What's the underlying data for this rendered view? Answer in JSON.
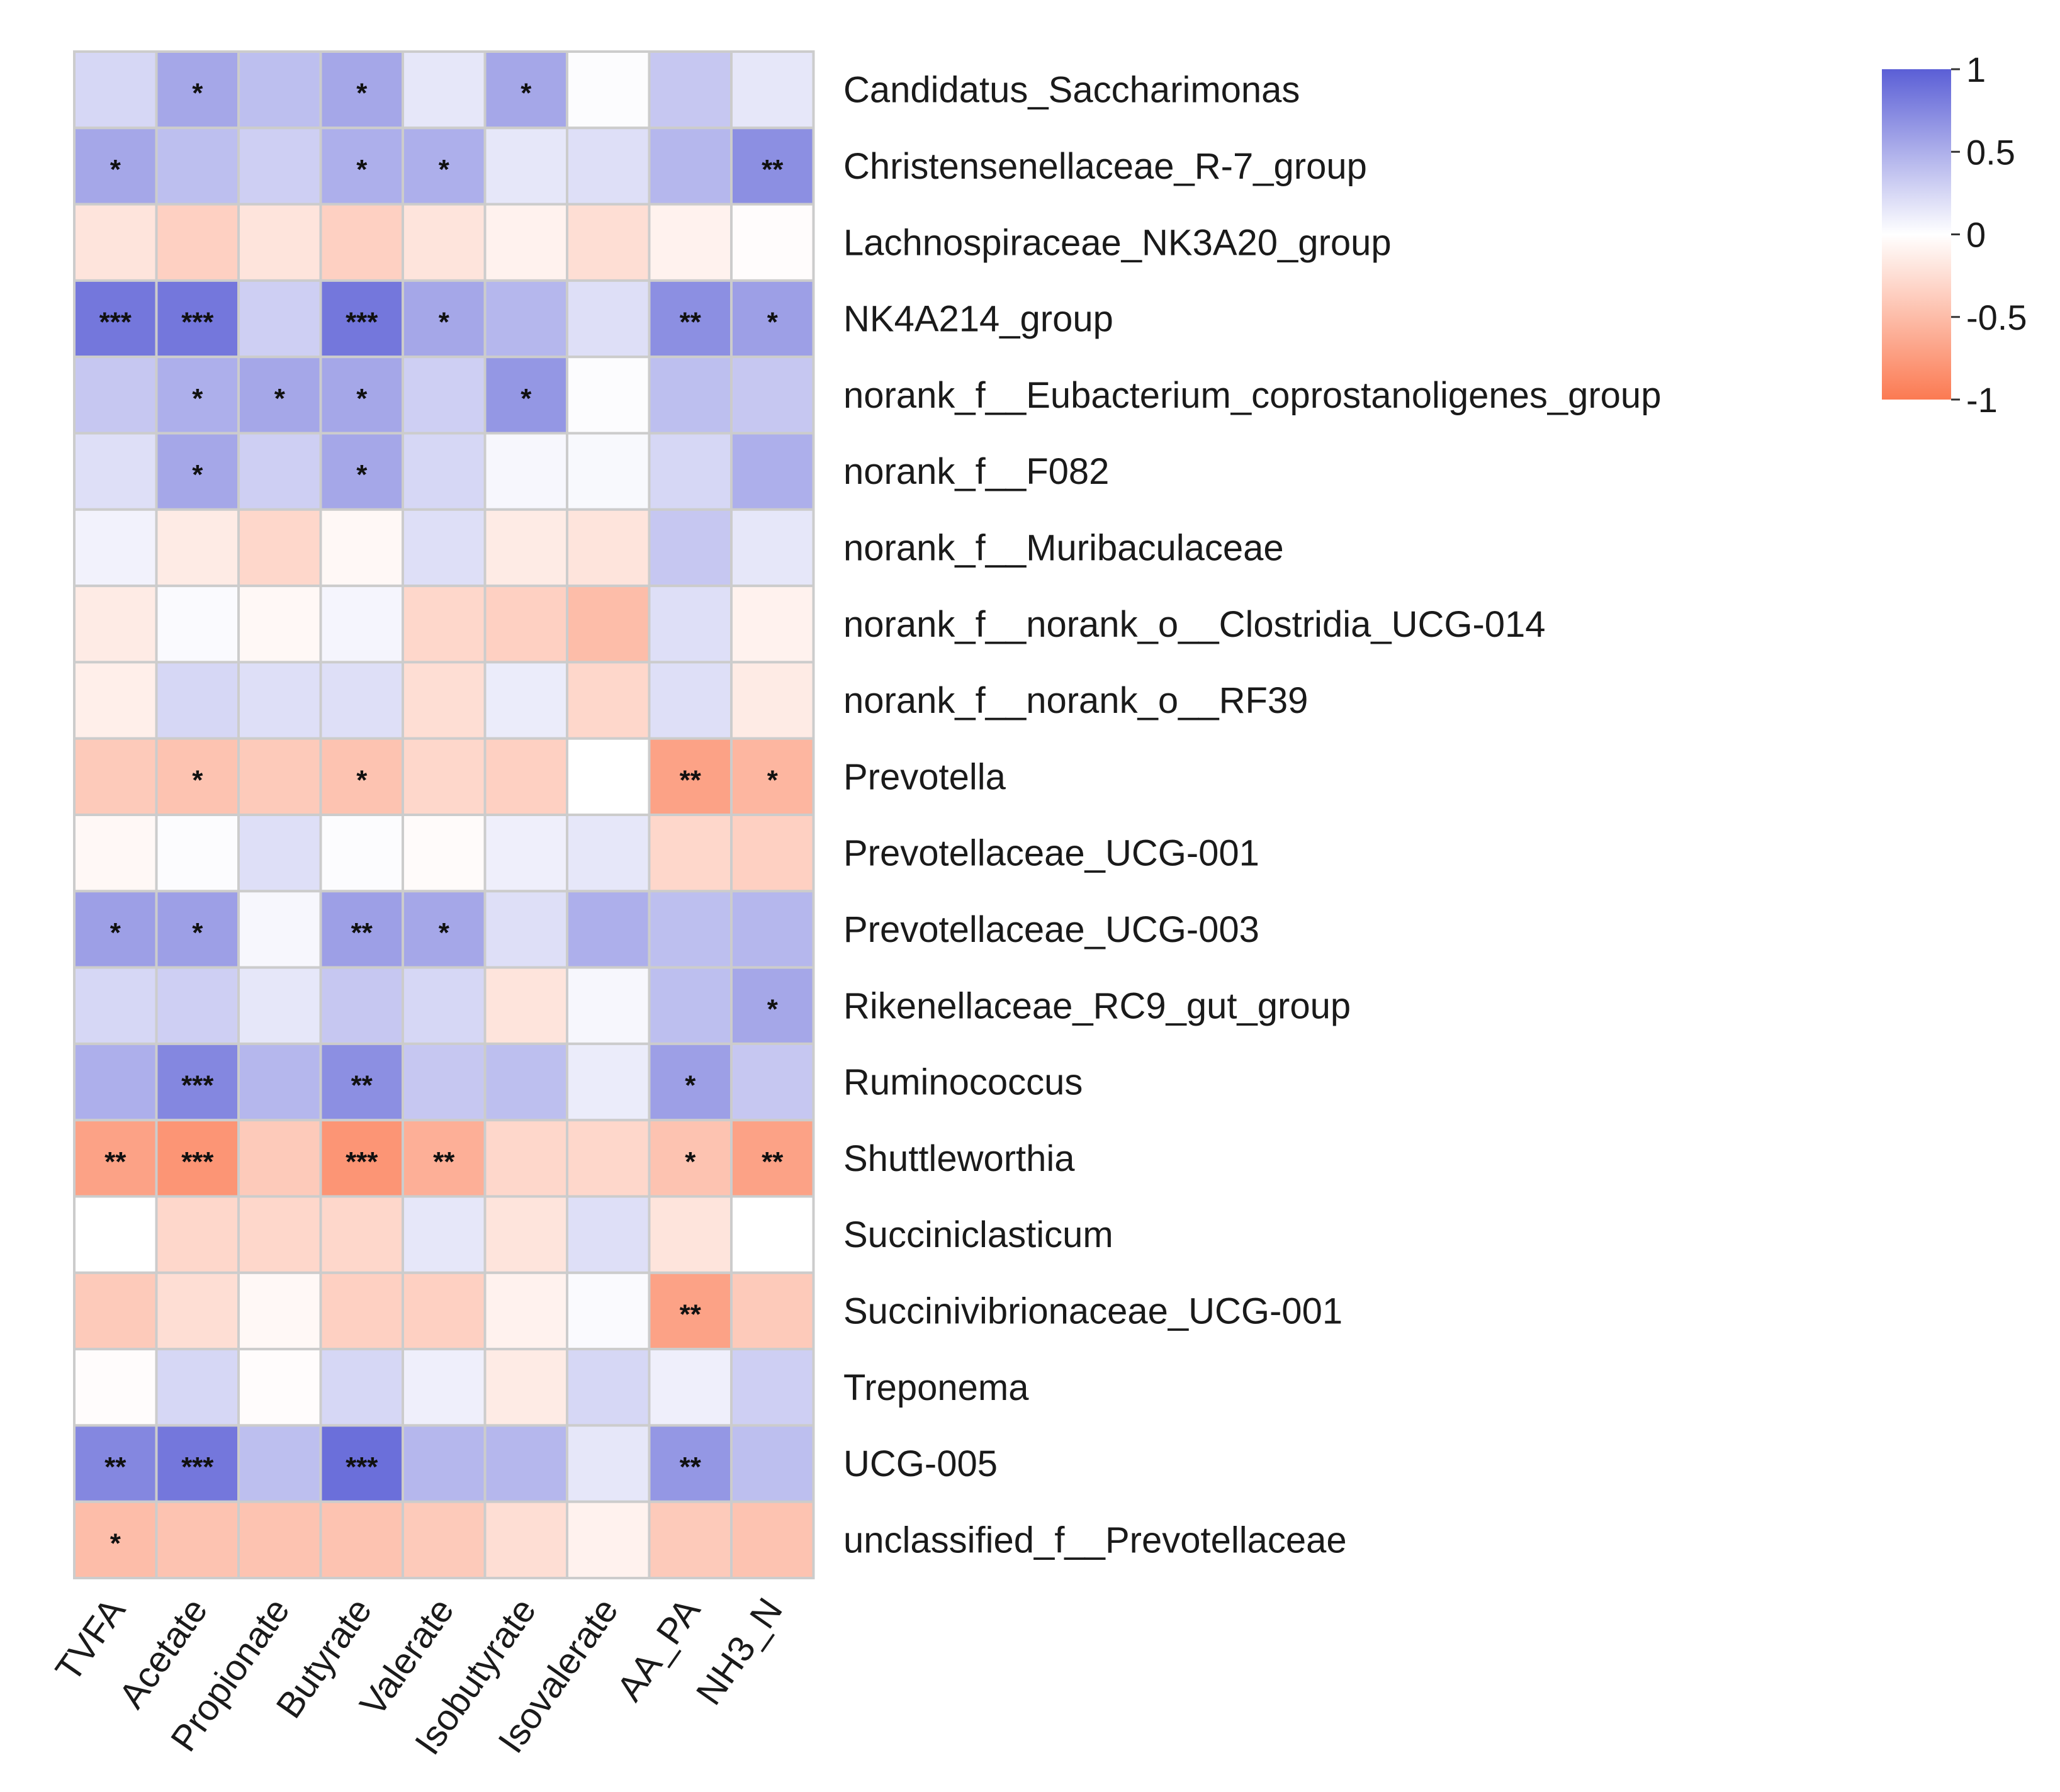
{
  "chart_data": {
    "type": "heatmap",
    "title": "",
    "rows": [
      "Candidatus_Saccharimonas",
      "Christensenellaceae_R-7_group",
      "Lachnospiraceae_NK3A20_group",
      "NK4A214_group",
      "norank_f__Eubacterium_coprostanoligenes_group",
      "norank_f__F082",
      "norank_f__Muribaculaceae",
      "norank_f__norank_o__Clostridia_UCG-014",
      "norank_f__norank_o__RF39",
      "Prevotella",
      "Prevotellaceae_UCG-001",
      "Prevotellaceae_UCG-003",
      "Rikenellaceae_RC9_gut_group",
      "Ruminococcus",
      "Shuttleworthia",
      "Succiniclasticum",
      "Succinivibrionaceae_UCG-001",
      "Treponema",
      "UCG-005",
      "unclassified_f__Prevotellaceae"
    ],
    "columns": [
      "TVFA",
      "Acetate",
      "Propionate",
      "Butyrate",
      "Valerate",
      "Isobutyrate",
      "Isovalerate",
      "AA_PA",
      "NH3_N"
    ],
    "values": [
      [
        0.25,
        0.55,
        0.4,
        0.55,
        0.15,
        0.55,
        0.02,
        0.35,
        0.15
      ],
      [
        0.55,
        0.4,
        0.3,
        0.5,
        0.5,
        0.15,
        0.2,
        0.45,
        0.7
      ],
      [
        -0.2,
        -0.35,
        -0.2,
        -0.35,
        -0.2,
        -0.1,
        -0.25,
        -0.1,
        -0.02
      ],
      [
        0.85,
        0.85,
        0.3,
        0.85,
        0.55,
        0.45,
        0.2,
        0.7,
        0.6
      ],
      [
        0.35,
        0.5,
        0.55,
        0.55,
        0.3,
        0.65,
        0.02,
        0.4,
        0.35
      ],
      [
        0.2,
        0.55,
        0.3,
        0.55,
        0.25,
        0.05,
        0.04,
        0.25,
        0.5
      ],
      [
        0.08,
        -0.15,
        -0.3,
        -0.05,
        0.2,
        -0.15,
        -0.2,
        0.35,
        0.15
      ],
      [
        -0.15,
        0.03,
        -0.05,
        0.06,
        -0.3,
        -0.35,
        -0.5,
        0.2,
        -0.1
      ],
      [
        -0.12,
        0.25,
        0.2,
        0.2,
        -0.25,
        0.12,
        -0.3,
        0.2,
        -0.15
      ],
      [
        -0.4,
        -0.45,
        -0.4,
        -0.45,
        -0.3,
        -0.35,
        0.0,
        -0.7,
        -0.55
      ],
      [
        -0.05,
        0.02,
        0.2,
        0.02,
        -0.03,
        0.1,
        0.15,
        -0.3,
        -0.35
      ],
      [
        0.6,
        0.6,
        0.05,
        0.6,
        0.55,
        0.2,
        0.5,
        0.4,
        0.45
      ],
      [
        0.25,
        0.3,
        0.15,
        0.35,
        0.25,
        -0.2,
        0.05,
        0.4,
        0.55
      ],
      [
        0.5,
        0.75,
        0.45,
        0.7,
        0.35,
        0.4,
        0.12,
        0.6,
        0.35
      ],
      [
        -0.7,
        -0.8,
        -0.4,
        -0.8,
        -0.6,
        -0.3,
        -0.3,
        -0.45,
        -0.7
      ],
      [
        0.0,
        -0.3,
        -0.3,
        -0.3,
        0.15,
        -0.2,
        0.2,
        -0.2,
        0.0
      ],
      [
        -0.4,
        -0.25,
        -0.05,
        -0.35,
        -0.35,
        -0.1,
        0.03,
        -0.7,
        -0.4
      ],
      [
        -0.02,
        0.25,
        -0.02,
        0.25,
        0.1,
        -0.15,
        0.25,
        0.1,
        0.3
      ],
      [
        0.75,
        0.85,
        0.4,
        0.9,
        0.45,
        0.45,
        0.15,
        0.65,
        0.4
      ],
      [
        -0.5,
        -0.45,
        -0.45,
        -0.45,
        -0.4,
        -0.25,
        -0.1,
        -0.4,
        -0.45
      ]
    ],
    "significance": [
      [
        "",
        "*",
        "",
        "*",
        "",
        "*",
        "",
        "",
        ""
      ],
      [
        "*",
        "",
        "",
        "*",
        "*",
        "",
        "",
        "",
        "**"
      ],
      [
        "",
        "",
        "",
        "",
        "",
        "",
        "",
        "",
        ""
      ],
      [
        "***",
        "***",
        "",
        "***",
        "*",
        "",
        "",
        "**",
        "*"
      ],
      [
        "",
        "*",
        "*",
        "*",
        "",
        "*",
        "",
        "",
        ""
      ],
      [
        "",
        "*",
        "",
        "*",
        "",
        "",
        "",
        "",
        ""
      ],
      [
        "",
        "",
        "",
        "",
        "",
        "",
        "",
        "",
        ""
      ],
      [
        "",
        "",
        "",
        "",
        "",
        "",
        "",
        "",
        ""
      ],
      [
        "",
        "",
        "",
        "",
        "",
        "",
        "",
        "",
        ""
      ],
      [
        "",
        "*",
        "",
        "*",
        "",
        "",
        "",
        "**",
        "*"
      ],
      [
        "",
        "",
        "",
        "",
        "",
        "",
        "",
        "",
        ""
      ],
      [
        "*",
        "*",
        "",
        "**",
        "*",
        "",
        "",
        "",
        ""
      ],
      [
        "",
        "",
        "",
        "",
        "",
        "",
        "",
        "",
        "*"
      ],
      [
        "",
        "***",
        "",
        "**",
        "",
        "",
        "",
        "*",
        ""
      ],
      [
        "**",
        "***",
        "",
        "***",
        "**",
        "",
        "",
        "*",
        "**"
      ],
      [
        "",
        "",
        "",
        "",
        "",
        "",
        "",
        "",
        ""
      ],
      [
        "",
        "",
        "",
        "",
        "",
        "",
        "",
        "**",
        ""
      ],
      [
        "",
        "",
        "",
        "",
        "",
        "",
        "",
        "",
        ""
      ],
      [
        "**",
        "***",
        "",
        "***",
        "",
        "",
        "",
        "**",
        ""
      ],
      [
        "*",
        "",
        "",
        "",
        "",
        "",
        "",
        "",
        ""
      ]
    ],
    "colorbar": {
      "range": [
        -1,
        1
      ],
      "ticks": [
        1,
        0.5,
        0,
        -0.5,
        -1
      ],
      "tick_labels": [
        "1",
        "0.5",
        "0",
        "-0.5",
        "-1"
      ],
      "colors": {
        "high": "#5b5fd6",
        "mid": "#ffffff",
        "low": "#fb7a52"
      }
    },
    "legend_position": "top-right",
    "cell_border_color": "#cccccc"
  }
}
